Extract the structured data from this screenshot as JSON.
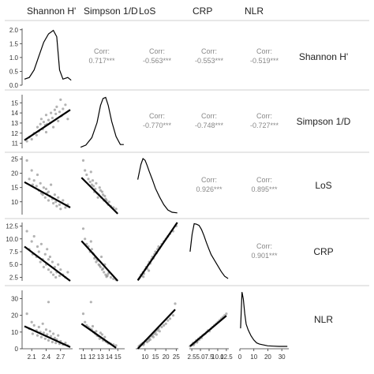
{
  "chart_data": {
    "type": "pairs",
    "variables": [
      "Shannon H'",
      "Simpson 1/D",
      "LoS",
      "CRP",
      "NLR"
    ],
    "axes": [
      {
        "range": [
          1.9,
          2.95
        ],
        "ticks": [
          {
            "v": 2.1,
            "label": "2.1"
          },
          {
            "v": 2.4,
            "label": "2.4"
          },
          {
            "v": 2.7,
            "label": "2.7"
          }
        ]
      },
      {
        "range": [
          10.5,
          15.8
        ],
        "ticks": [
          {
            "v": 11,
            "label": "11"
          },
          {
            "v": 12,
            "label": "12"
          },
          {
            "v": 13,
            "label": "13"
          },
          {
            "v": 14,
            "label": "14"
          },
          {
            "v": 15,
            "label": "15"
          }
        ]
      },
      {
        "range": [
          5.5,
          26
        ],
        "ticks": [
          {
            "v": 10,
            "label": "10"
          },
          {
            "v": 15,
            "label": "15"
          },
          {
            "v": 20,
            "label": "20"
          },
          {
            "v": 25,
            "label": "25"
          }
        ]
      },
      {
        "range": [
          1.8,
          13.2
        ],
        "ticks": [
          {
            "v": 2.5,
            "label": "2.5"
          },
          {
            "v": 5,
            "label": "5.0"
          },
          {
            "v": 7.5,
            "label": "7.5"
          },
          {
            "v": 10,
            "label": "10.0"
          },
          {
            "v": 12.5,
            "label": "12.5"
          }
        ],
        "row_ticks": [
          {
            "v": 2.5,
            "label": "2.5"
          },
          {
            "v": 5,
            "label": "5.0"
          },
          {
            "v": 7.5,
            "label": "7.5"
          },
          {
            "v": 10,
            "label": "10.0"
          },
          {
            "v": 12.5,
            "label": "12.5"
          }
        ],
        "col_ticks": [
          {
            "v": 2.5,
            "label": "2.5"
          },
          {
            "v": 5,
            "label": "5.0"
          },
          {
            "v": 7.5,
            "label": "7.5"
          },
          {
            "v": 10,
            "label": "10.0"
          },
          {
            "v": 12.5,
            "label": "12.5"
          }
        ]
      },
      {
        "range": [
          0,
          35
        ],
        "ticks": [
          {
            "v": 0,
            "label": "0"
          },
          {
            "v": 10,
            "label": "10"
          },
          {
            "v": 20,
            "label": "20"
          },
          {
            "v": 30,
            "label": "30"
          }
        ]
      }
    ],
    "top_left_density_axis": {
      "range": [
        0,
        2.05
      ],
      "ticks": [
        {
          "v": 0.0,
          "label": "0.0"
        },
        {
          "v": 0.5,
          "label": "0.5"
        },
        {
          "v": 1.0,
          "label": "1.0"
        },
        {
          "v": 1.5,
          "label": "1.5"
        },
        {
          "v": 2.0,
          "label": "2.0"
        }
      ]
    },
    "correlations": [
      {
        "row": 0,
        "col": 1,
        "label": "Corr:",
        "value": "0.717***"
      },
      {
        "row": 0,
        "col": 2,
        "label": "Corr:",
        "value": "-0.563***"
      },
      {
        "row": 0,
        "col": 3,
        "label": "Corr:",
        "value": "-0.553***"
      },
      {
        "row": 0,
        "col": 4,
        "label": "Corr:",
        "value": "-0.519***"
      },
      {
        "row": 1,
        "col": 2,
        "label": "Corr:",
        "value": "-0.770***"
      },
      {
        "row": 1,
        "col": 3,
        "label": "Corr:",
        "value": "-0.748***"
      },
      {
        "row": 1,
        "col": 4,
        "label": "Corr:",
        "value": "-0.727***"
      },
      {
        "row": 2,
        "col": 3,
        "label": "Corr:",
        "value": "0.926***"
      },
      {
        "row": 2,
        "col": 4,
        "label": "Corr:",
        "value": "0.895***"
      },
      {
        "row": 3,
        "col": 4,
        "label": "Corr:",
        "value": "0.901***"
      }
    ],
    "densities": [
      {
        "var": 0,
        "x": [
          1.95,
          2.05,
          2.15,
          2.25,
          2.35,
          2.45,
          2.55,
          2.62,
          2.68,
          2.75,
          2.85,
          2.92
        ],
        "y": [
          0.22,
          0.28,
          0.55,
          1.05,
          1.55,
          1.85,
          1.98,
          1.75,
          0.55,
          0.22,
          0.28,
          0.18
        ]
      },
      {
        "var": 1,
        "x": [
          10.7,
          11.3,
          12.0,
          12.6,
          13.0,
          13.3,
          13.6,
          13.9,
          14.3,
          14.8,
          15.3,
          15.7
        ],
        "y": [
          0.02,
          0.06,
          0.2,
          0.48,
          0.8,
          0.93,
          0.95,
          0.8,
          0.5,
          0.22,
          0.07,
          0.07
        ]
      },
      {
        "var": 2,
        "x": [
          6.5,
          8.0,
          9.0,
          10.0,
          11.0,
          12.0,
          13.5,
          15.0,
          17.0,
          19.0,
          21.0,
          23.0,
          25.5
        ],
        "y": [
          0.6,
          0.86,
          0.96,
          0.93,
          0.84,
          0.74,
          0.6,
          0.45,
          0.3,
          0.17,
          0.08,
          0.04,
          0.03
        ]
      },
      {
        "var": 3,
        "x": [
          2.0,
          2.6,
          3.2,
          3.9,
          4.6,
          5.3,
          6.0,
          6.7,
          7.4,
          8.1,
          9.0,
          10.0,
          11.0,
          12.0,
          13.0
        ],
        "y": [
          0.5,
          0.8,
          0.98,
          0.97,
          0.95,
          0.88,
          0.78,
          0.66,
          0.55,
          0.45,
          0.36,
          0.26,
          0.16,
          0.08,
          0.04
        ]
      },
      {
        "var": 4,
        "x": [
          0.5,
          1.5,
          2.5,
          3.5,
          4.5,
          6.0,
          8.0,
          10.0,
          12.0,
          14.0,
          16.0,
          18.0,
          20.0,
          24.0,
          28.0,
          32.0,
          34.0
        ],
        "y": [
          0.35,
          0.97,
          0.85,
          0.6,
          0.42,
          0.32,
          0.22,
          0.15,
          0.1,
          0.08,
          0.07,
          0.06,
          0.05,
          0.045,
          0.04,
          0.04,
          0.04
        ]
      }
    ],
    "regressions": [
      {
        "row": 1,
        "col": 0,
        "x": [
          1.95,
          2.9
        ],
        "y": [
          11.3,
          14.3
        ]
      },
      {
        "row": 2,
        "col": 0,
        "x": [
          1.95,
          2.9
        ],
        "y": [
          16.9,
          8.0
        ]
      },
      {
        "row": 2,
        "col": 1,
        "x": [
          10.8,
          15.0
        ],
        "y": [
          18.5,
          5.8
        ]
      },
      {
        "row": 3,
        "col": 0,
        "x": [
          1.95,
          2.9
        ],
        "y": [
          8.5,
          1.8
        ]
      },
      {
        "row": 3,
        "col": 1,
        "x": [
          10.8,
          15.0
        ],
        "y": [
          9.6,
          1.8
        ]
      },
      {
        "row": 3,
        "col": 2,
        "x": [
          6.5,
          25.5
        ],
        "y": [
          1.9,
          13.2
        ]
      },
      {
        "row": 4,
        "col": 0,
        "x": [
          1.95,
          2.9
        ],
        "y": [
          13.5,
          1.0
        ]
      },
      {
        "row": 4,
        "col": 1,
        "x": [
          10.8,
          14.8
        ],
        "y": [
          15.0,
          0.5
        ]
      },
      {
        "row": 4,
        "col": 2,
        "x": [
          6.5,
          24.5
        ],
        "y": [
          0.0,
          23.5
        ]
      },
      {
        "row": 4,
        "col": 3,
        "x": [
          2.0,
          12.5
        ],
        "y": [
          1.5,
          19.8
        ]
      }
    ],
    "scatter": [
      {
        "row": 1,
        "col": 0,
        "x": [
          2.0,
          2.05,
          2.1,
          2.15,
          2.2,
          2.22,
          2.25,
          2.28,
          2.3,
          2.33,
          2.35,
          2.38,
          2.4,
          2.42,
          2.45,
          2.48,
          2.5,
          2.53,
          2.55,
          2.58,
          2.6,
          2.62,
          2.65,
          2.68,
          2.7,
          2.72,
          2.75,
          2.8,
          2.85,
          2.4
        ],
        "y": [
          11.2,
          11.6,
          11.4,
          12.0,
          11.8,
          12.6,
          12.2,
          12.9,
          13.4,
          12.4,
          13.1,
          12.8,
          13.8,
          12.9,
          13.3,
          13.0,
          14.0,
          13.5,
          12.6,
          14.3,
          13.9,
          14.6,
          13.2,
          14.1,
          15.3,
          13.7,
          14.4,
          14.8,
          13.4,
          12.1
        ]
      },
      {
        "row": 2,
        "col": 0,
        "x": [
          2.0,
          2.05,
          2.1,
          2.12,
          2.15,
          2.2,
          2.22,
          2.25,
          2.28,
          2.3,
          2.33,
          2.35,
          2.38,
          2.4,
          2.42,
          2.45,
          2.48,
          2.5,
          2.53,
          2.55,
          2.58,
          2.6,
          2.62,
          2.65,
          2.68,
          2.7,
          2.75,
          2.8,
          2.85,
          2.45
        ],
        "y": [
          24.5,
          18.0,
          21.0,
          16.0,
          17.5,
          15.5,
          19.5,
          14.0,
          16.5,
          13.0,
          12.5,
          15.0,
          11.5,
          14.5,
          13.0,
          10.5,
          12.0,
          16.0,
          11.0,
          9.5,
          12.5,
          10.0,
          8.5,
          11.5,
          9.0,
          7.5,
          10.5,
          8.0,
          9.0,
          13.5
        ]
      },
      {
        "row": 2,
        "col": 1,
        "x": [
          11.0,
          11.2,
          11.4,
          11.6,
          11.8,
          12.0,
          12.2,
          12.4,
          12.5,
          12.6,
          12.8,
          13.0,
          13.1,
          13.2,
          13.4,
          13.5,
          13.6,
          13.8,
          14.0,
          14.2,
          14.5,
          12.9,
          13.3,
          12.7,
          13.9,
          11.9,
          12.3,
          13.7,
          14.8,
          12.1
        ],
        "y": [
          24.5,
          21.0,
          19.5,
          18.0,
          17.0,
          16.0,
          15.5,
          14.5,
          16.5,
          13.0,
          12.5,
          14.0,
          11.5,
          13.5,
          10.5,
          12.0,
          11.0,
          9.5,
          10.0,
          8.5,
          8.0,
          15.0,
          12.5,
          11.5,
          9.0,
          20.5,
          13.5,
          10.5,
          7.5,
          17.5
        ]
      },
      {
        "row": 3,
        "col": 0,
        "x": [
          2.0,
          2.05,
          2.1,
          2.12,
          2.15,
          2.2,
          2.22,
          2.25,
          2.28,
          2.3,
          2.33,
          2.35,
          2.38,
          2.4,
          2.42,
          2.45,
          2.48,
          2.5,
          2.53,
          2.55,
          2.58,
          2.6,
          2.62,
          2.65,
          2.68,
          2.7,
          2.75,
          2.8,
          2.85,
          2.45
        ],
        "y": [
          11.5,
          8.0,
          9.5,
          7.0,
          10.5,
          6.5,
          8.5,
          7.5,
          5.5,
          9.0,
          6.0,
          4.5,
          7.0,
          5.0,
          8.0,
          4.0,
          6.5,
          3.5,
          5.5,
          3.0,
          4.5,
          2.5,
          3.5,
          5.0,
          2.8,
          4.0,
          3.0,
          2.5,
          3.5,
          6.0
        ]
      },
      {
        "row": 3,
        "col": 1,
        "x": [
          11.0,
          11.2,
          11.4,
          11.6,
          11.8,
          12.0,
          12.2,
          12.4,
          12.5,
          12.6,
          12.8,
          13.0,
          13.1,
          13.2,
          13.4,
          13.5,
          13.6,
          13.8,
          14.0,
          14.2,
          14.5,
          12.9,
          13.3,
          12.7,
          13.9,
          11.9,
          12.3,
          13.7,
          14.8,
          12.1
        ],
        "y": [
          12.0,
          10.0,
          9.0,
          8.5,
          7.5,
          8.0,
          7.0,
          6.5,
          5.5,
          6.0,
          5.0,
          4.5,
          6.5,
          4.0,
          3.5,
          5.0,
          3.0,
          2.8,
          3.5,
          2.5,
          2.2,
          4.8,
          4.2,
          5.8,
          3.2,
          9.5,
          6.2,
          2.6,
          2.0,
          7.2
        ]
      },
      {
        "row": 3,
        "col": 2,
        "x": [
          7.0,
          7.5,
          8.0,
          8.5,
          9.0,
          9.5,
          10.0,
          10.5,
          11.0,
          11.5,
          12.0,
          12.5,
          13.0,
          13.5,
          14.0,
          14.5,
          15.0,
          15.5,
          16.0,
          16.5,
          17.0,
          18.0,
          19.0,
          20.0,
          21.0,
          22.0,
          23.5,
          25.0,
          9.2,
          11.8
        ],
        "y": [
          2.2,
          2.5,
          3.0,
          2.8,
          3.5,
          3.2,
          4.0,
          4.5,
          4.2,
          5.0,
          5.5,
          5.2,
          6.0,
          6.5,
          6.2,
          7.0,
          7.5,
          7.2,
          8.0,
          8.5,
          8.2,
          9.0,
          9.5,
          10.0,
          10.5,
          11.0,
          11.5,
          12.5,
          2.6,
          3.8
        ]
      },
      {
        "row": 4,
        "col": 0,
        "x": [
          2.0,
          2.05,
          2.1,
          2.12,
          2.15,
          2.2,
          2.22,
          2.25,
          2.28,
          2.3,
          2.33,
          2.35,
          2.38,
          2.4,
          2.42,
          2.45,
          2.48,
          2.5,
          2.53,
          2.55,
          2.58,
          2.6,
          2.62,
          2.65,
          2.68,
          2.7,
          2.75,
          2.8,
          2.85,
          2.45
        ],
        "y": [
          21.0,
          12.0,
          16.0,
          9.0,
          14.0,
          11.0,
          8.0,
          13.0,
          10.0,
          7.0,
          15.0,
          9.5,
          6.0,
          11.5,
          8.5,
          5.0,
          10.5,
          7.5,
          4.0,
          9.0,
          6.5,
          3.5,
          5.5,
          8.0,
          3.0,
          4.5,
          2.5,
          3.5,
          2.0,
          28.0
        ]
      },
      {
        "row": 4,
        "col": 1,
        "x": [
          11.0,
          11.2,
          11.4,
          11.6,
          11.8,
          12.0,
          12.2,
          12.4,
          12.5,
          12.6,
          12.8,
          13.0,
          13.1,
          13.2,
          13.4,
          13.5,
          13.6,
          13.8,
          14.0,
          14.2,
          14.5,
          12.9,
          13.3,
          12.7,
          13.9,
          11.9,
          12.3,
          13.7,
          14.8,
          12.1
        ],
        "y": [
          21.0,
          16.0,
          14.0,
          13.0,
          12.0,
          11.5,
          10.0,
          9.0,
          10.5,
          8.0,
          7.5,
          9.5,
          6.5,
          8.5,
          5.5,
          7.0,
          4.5,
          4.0,
          3.5,
          3.0,
          2.5,
          6.0,
          5.0,
          7.8,
          3.2,
          28.0,
          9.8,
          4.2,
          2.0,
          13.5
        ]
      },
      {
        "row": 4,
        "col": 2,
        "x": [
          7.0,
          7.5,
          8.0,
          8.5,
          9.0,
          9.5,
          10.0,
          10.5,
          11.0,
          11.5,
          12.0,
          12.5,
          13.0,
          13.5,
          14.0,
          14.5,
          15.0,
          15.5,
          16.0,
          16.5,
          17.0,
          18.0,
          19.0,
          20.0,
          21.0,
          22.0,
          23.5,
          24.5,
          9.2,
          11.8
        ],
        "y": [
          1.5,
          2.0,
          2.5,
          3.0,
          3.5,
          3.0,
          4.5,
          5.0,
          4.0,
          6.0,
          6.5,
          5.5,
          7.5,
          8.0,
          7.0,
          9.0,
          10.0,
          8.5,
          11.0,
          12.0,
          10.5,
          13.0,
          14.0,
          15.0,
          17.0,
          18.0,
          20.0,
          27.0,
          2.2,
          4.8
        ]
      },
      {
        "row": 4,
        "col": 3,
        "x": [
          2.0,
          2.3,
          2.6,
          2.9,
          3.2,
          3.5,
          3.8,
          4.1,
          4.4,
          4.7,
          5.0,
          5.3,
          5.6,
          6.0,
          6.4,
          6.8,
          7.2,
          7.6,
          8.0,
          8.5,
          9.0,
          9.5,
          10.0,
          10.5,
          11.0,
          11.5,
          12.0,
          12.5,
          3.0,
          4.0
        ],
        "y": [
          1.5,
          2.0,
          2.5,
          3.5,
          3.0,
          4.0,
          5.0,
          4.5,
          6.0,
          5.5,
          7.0,
          6.5,
          8.0,
          8.5,
          9.0,
          10.0,
          11.0,
          10.5,
          12.0,
          13.0,
          14.0,
          15.0,
          16.0,
          17.0,
          18.0,
          19.0,
          20.0,
          21.0,
          2.2,
          3.8
        ]
      }
    ]
  }
}
